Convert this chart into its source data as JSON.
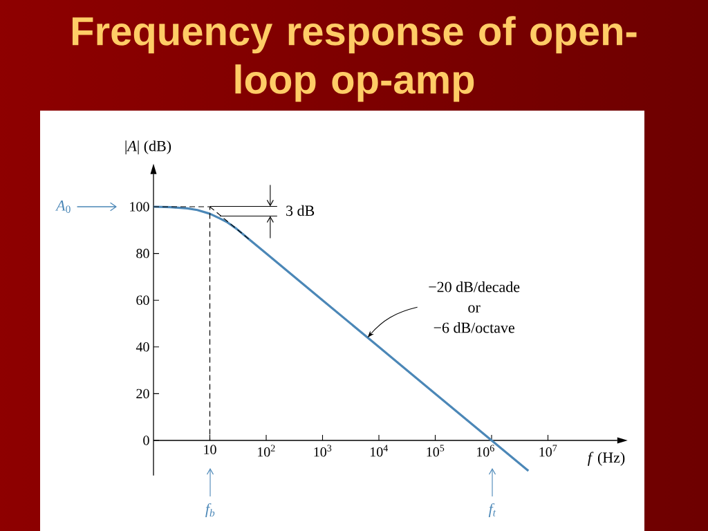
{
  "chart_data": {
    "type": "line",
    "title": "Frequency response of open-loop op-amp",
    "xlabel": "*f* (Hz)",
    "ylabel": "|*A*| (dB)",
    "log": "x",
    "xlim": [
      1,
      170000000
    ],
    "ylim": [
      -15,
      114
    ],
    "xticks": [
      10,
      {
        "value": 100,
        "label": "10$^{2}$"
      },
      {
        "value": 1000,
        "label": "10$^{3}$"
      },
      {
        "value": 10000,
        "label": "10$^{4}$"
      },
      {
        "value": 100000,
        "label": "10$^{5}$"
      },
      {
        "value": 1000000,
        "label": "10$^{6}$"
      },
      {
        "value": 10000000,
        "label": "10$^{7}$"
      }
    ],
    "yticks": [
      0,
      20,
      40,
      60,
      80,
      100
    ],
    "series": [
      {
        "color": "#4b87b7",
        "line_style": "solid",
        "x": [
          1,
          2,
          4,
          6,
          10,
          15,
          20,
          30,
          50,
          100,
          1000,
          10000,
          100000,
          1000000,
          4500000
        ],
        "values": [
          100,
          99.8,
          99.3,
          98.6,
          97,
          95,
          93.5,
          90.5,
          86,
          80,
          60,
          40,
          20,
          0,
          -13
        ]
      },
      {
        "color": "#000000",
        "line_style": "dashed",
        "x": [
          1,
          10,
          10
        ],
        "values": [
          100,
          100,
          0
        ]
      },
      {
        "color": "#000000",
        "line_style": "dashed",
        "x": [
          10,
          49
        ],
        "values": [
          100,
          86.2
        ]
      }
    ],
    "annotations": [
      "*A*$_{0}$",
      "f$_{b}$",
      "f$_{t}$",
      {
        "text": "3 dB",
        "x": 15,
        "y": 96
      },
      {
        "text": "−20 dB/decade",
        "x": 6300,
        "y": 44
      },
      "or",
      "−6 dB/octave"
    ]
  }
}
